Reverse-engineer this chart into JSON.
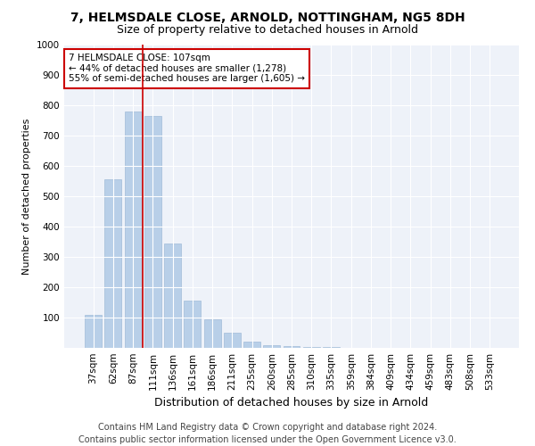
{
  "title1": "7, HELMSDALE CLOSE, ARNOLD, NOTTINGHAM, NG5 8DH",
  "title2": "Size of property relative to detached houses in Arnold",
  "xlabel": "Distribution of detached houses by size in Arnold",
  "ylabel": "Number of detached properties",
  "categories": [
    "37sqm",
    "62sqm",
    "87sqm",
    "111sqm",
    "136sqm",
    "161sqm",
    "186sqm",
    "211sqm",
    "235sqm",
    "260sqm",
    "285sqm",
    "310sqm",
    "335sqm",
    "359sqm",
    "384sqm",
    "409sqm",
    "434sqm",
    "459sqm",
    "483sqm",
    "508sqm",
    "533sqm"
  ],
  "values": [
    110,
    555,
    780,
    765,
    345,
    155,
    95,
    50,
    20,
    10,
    5,
    3,
    2,
    1,
    1,
    0,
    0,
    1,
    0,
    0,
    0
  ],
  "bar_color": "#b8cfe8",
  "bar_edgecolor": "#a0bcd8",
  "vline_color": "#cc0000",
  "vline_x_index": 3,
  "annotation_text": "7 HELMSDALE CLOSE: 107sqm\n← 44% of detached houses are smaller (1,278)\n55% of semi-detached houses are larger (1,605) →",
  "annotation_box_facecolor": "#ffffff",
  "annotation_box_edgecolor": "#cc0000",
  "footer": "Contains HM Land Registry data © Crown copyright and database right 2024.\nContains public sector information licensed under the Open Government Licence v3.0.",
  "bg_color": "#eef2f9",
  "ylim": [
    0,
    1000
  ],
  "yticks": [
    0,
    100,
    200,
    300,
    400,
    500,
    600,
    700,
    800,
    900,
    1000
  ],
  "title1_fontsize": 10,
  "title2_fontsize": 9,
  "xlabel_fontsize": 9,
  "ylabel_fontsize": 8,
  "tick_fontsize": 7.5,
  "annotation_fontsize": 7.5,
  "footer_fontsize": 7
}
